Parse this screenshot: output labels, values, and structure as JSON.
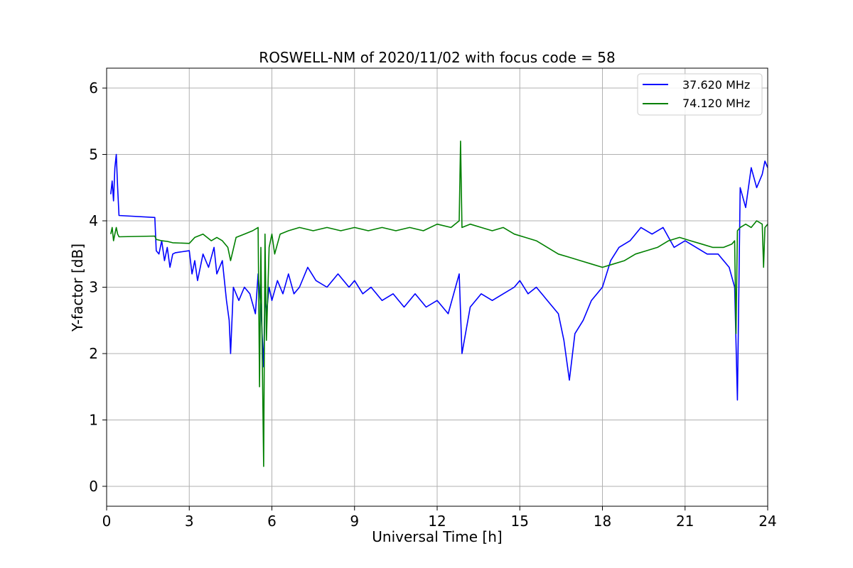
{
  "chart_data": {
    "type": "line",
    "title": "ROSWELL-NM of 2020/11/02 with focus code = 58",
    "xlabel": "Universal Time [h]",
    "ylabel": "Y-factor [dB]",
    "xlim": [
      0,
      24
    ],
    "ylim": [
      -0.3,
      6.3
    ],
    "x_ticks": [
      0,
      3,
      6,
      9,
      12,
      15,
      18,
      21,
      24
    ],
    "y_ticks": [
      0,
      1,
      2,
      3,
      4,
      5,
      6
    ],
    "grid": true,
    "legend_position": "top-right",
    "series": [
      {
        "name": "37.620 MHz",
        "color": "#0000ff",
        "x": [
          0.15,
          0.2,
          0.25,
          0.3,
          0.35,
          0.4,
          0.45,
          1.75,
          1.8,
          1.9,
          2.0,
          2.1,
          2.2,
          2.3,
          2.4,
          2.5,
          3.0,
          3.1,
          3.2,
          3.3,
          3.5,
          3.7,
          3.9,
          4.0,
          4.2,
          4.35,
          4.45,
          4.5,
          4.6,
          4.8,
          5.0,
          5.2,
          5.4,
          5.5,
          5.6,
          5.7,
          5.75,
          5.8,
          5.9,
          6.0,
          6.2,
          6.4,
          6.6,
          6.8,
          7.0,
          7.3,
          7.6,
          8.0,
          8.4,
          8.8,
          9.0,
          9.3,
          9.6,
          10.0,
          10.4,
          10.8,
          11.2,
          11.6,
          12.0,
          12.4,
          12.8,
          12.9,
          13.2,
          13.6,
          14.0,
          14.4,
          14.8,
          15.0,
          15.3,
          15.6,
          16.0,
          16.4,
          16.6,
          16.8,
          17.0,
          17.3,
          17.6,
          18.0,
          18.3,
          18.6,
          19.0,
          19.4,
          19.8,
          20.2,
          20.6,
          21.0,
          21.4,
          21.8,
          22.2,
          22.6,
          22.8,
          22.9,
          23.0,
          23.2,
          23.4,
          23.6,
          23.8,
          23.9,
          24.0
        ],
        "y": [
          4.4,
          4.6,
          4.3,
          4.8,
          5.0,
          4.5,
          4.08,
          4.05,
          3.55,
          3.5,
          3.7,
          3.4,
          3.6,
          3.3,
          3.5,
          3.52,
          3.55,
          3.2,
          3.4,
          3.1,
          3.5,
          3.3,
          3.6,
          3.2,
          3.4,
          2.8,
          2.5,
          2.0,
          3.0,
          2.8,
          3.0,
          2.9,
          2.6,
          3.2,
          2.7,
          1.8,
          2.9,
          2.6,
          3.0,
          2.8,
          3.1,
          2.9,
          3.2,
          2.9,
          3.0,
          3.3,
          3.1,
          3.0,
          3.2,
          3.0,
          3.1,
          2.9,
          3.0,
          2.8,
          2.9,
          2.7,
          2.9,
          2.7,
          2.8,
          2.6,
          3.2,
          2.0,
          2.7,
          2.9,
          2.8,
          2.9,
          3.0,
          3.1,
          2.9,
          3.0,
          2.8,
          2.6,
          2.2,
          1.6,
          2.3,
          2.5,
          2.8,
          3.0,
          3.4,
          3.6,
          3.7,
          3.9,
          3.8,
          3.9,
          3.6,
          3.7,
          3.6,
          3.5,
          3.5,
          3.3,
          3.0,
          1.3,
          4.5,
          4.2,
          4.8,
          4.5,
          4.7,
          4.9,
          4.8
        ]
      },
      {
        "name": "74.120 MHz",
        "color": "#008000",
        "x": [
          0.15,
          0.2,
          0.25,
          0.3,
          0.35,
          0.4,
          0.45,
          1.75,
          1.8,
          2.0,
          2.2,
          2.4,
          3.0,
          3.2,
          3.5,
          3.8,
          4.0,
          4.2,
          4.4,
          4.5,
          4.7,
          5.0,
          5.3,
          5.5,
          5.55,
          5.6,
          5.7,
          5.75,
          5.8,
          5.9,
          6.0,
          6.1,
          6.3,
          6.6,
          7.0,
          7.5,
          8.0,
          8.5,
          9.0,
          9.5,
          10.0,
          10.5,
          11.0,
          11.5,
          12.0,
          12.5,
          12.8,
          12.85,
          12.9,
          13.2,
          13.6,
          14.0,
          14.4,
          14.8,
          15.2,
          15.6,
          16.0,
          16.4,
          16.8,
          17.2,
          17.6,
          18.0,
          18.4,
          18.8,
          19.2,
          19.6,
          20.0,
          20.4,
          20.8,
          21.2,
          21.6,
          22.0,
          22.4,
          22.7,
          22.8,
          22.85,
          22.9,
          23.0,
          23.2,
          23.4,
          23.6,
          23.8,
          23.85,
          23.9,
          24.0
        ],
        "y": [
          3.8,
          3.9,
          3.7,
          3.8,
          3.9,
          3.8,
          3.76,
          3.77,
          3.72,
          3.7,
          3.69,
          3.67,
          3.66,
          3.75,
          3.8,
          3.7,
          3.75,
          3.7,
          3.6,
          3.4,
          3.75,
          3.8,
          3.85,
          3.9,
          1.5,
          3.6,
          0.3,
          3.8,
          2.2,
          3.6,
          3.8,
          3.5,
          3.8,
          3.85,
          3.9,
          3.85,
          3.9,
          3.85,
          3.9,
          3.85,
          3.9,
          3.85,
          3.9,
          3.85,
          3.95,
          3.9,
          4.0,
          5.2,
          3.9,
          3.95,
          3.9,
          3.85,
          3.9,
          3.8,
          3.75,
          3.7,
          3.6,
          3.5,
          3.45,
          3.4,
          3.35,
          3.3,
          3.35,
          3.4,
          3.5,
          3.55,
          3.6,
          3.7,
          3.75,
          3.7,
          3.65,
          3.6,
          3.6,
          3.65,
          3.7,
          2.3,
          3.85,
          3.9,
          3.95,
          3.9,
          4.0,
          3.95,
          3.3,
          3.9,
          3.95
        ]
      }
    ]
  }
}
